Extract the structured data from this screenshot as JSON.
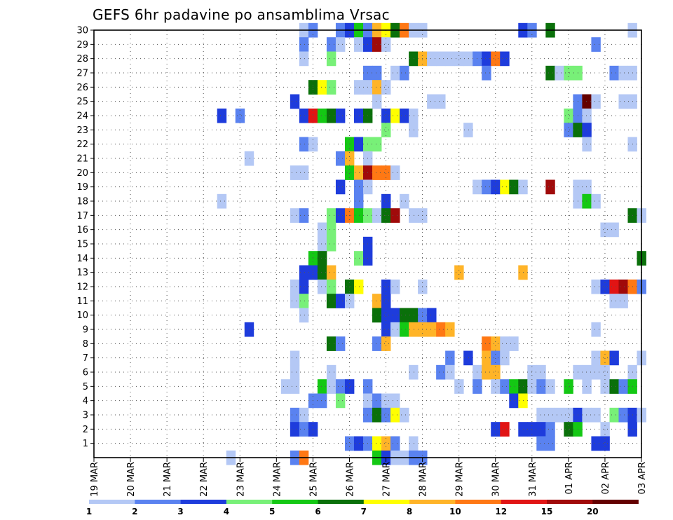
{
  "chart_data": {
    "type": "heatmap",
    "title": "GEFS 6hr padavine po ansamblima Vrsac",
    "x_tick_labels": [
      "19 MAR",
      "20 MAR",
      "21 MAR",
      "22 MAR",
      "23 MAR",
      "24 MAR",
      "25 MAR",
      "26 MAR",
      "27 MAR",
      "28 MAR",
      "29 MAR",
      "30 MAR",
      "31 MAR",
      "01 APR",
      "02 APR",
      "03 APR"
    ],
    "y_tick_labels": [
      "1",
      "2",
      "3",
      "4",
      "5",
      "6",
      "7",
      "8",
      "9",
      "10",
      "11",
      "12",
      "13",
      "14",
      "15",
      "16",
      "17",
      "18",
      "19",
      "20",
      "21",
      "22",
      "23",
      "24",
      "25",
      "26",
      "27",
      "28",
      "29",
      "30"
    ],
    "x_unit": "6-hour steps from 19 MAR 00Z",
    "x_range": [
      0,
      60
    ],
    "y_range": [
      0,
      30
    ],
    "grid": true,
    "legend_position": "bottom",
    "legend": {
      "labels": [
        "1",
        "2",
        "3",
        "4",
        "5",
        "6",
        "7",
        "8",
        "10",
        "12",
        "15",
        "20"
      ],
      "colors": [
        "#b4c8f5",
        "#5a82f0",
        "#1e3cdc",
        "#78f078",
        "#14c814",
        "#0a700a",
        "#ffff00",
        "#ffb428",
        "#ff7814",
        "#e11414",
        "#a00a0a",
        "#640000"
      ]
    },
    "cells": [
      [
        23,
        30,
        0
      ],
      [
        24,
        30,
        1
      ],
      [
        27,
        30,
        1
      ],
      [
        28,
        30,
        2
      ],
      [
        29,
        30,
        4
      ],
      [
        30,
        30,
        1
      ],
      [
        31,
        30,
        7
      ],
      [
        32,
        30,
        6
      ],
      [
        33,
        30,
        5
      ],
      [
        34,
        30,
        8
      ],
      [
        35,
        30,
        0
      ],
      [
        36,
        30,
        0
      ],
      [
        47,
        30,
        2
      ],
      [
        48,
        30,
        1
      ],
      [
        50,
        30,
        5
      ],
      [
        59,
        30,
        0
      ],
      [
        23,
        29,
        1
      ],
      [
        26,
        29,
        1
      ],
      [
        27,
        29,
        0
      ],
      [
        29,
        29,
        0
      ],
      [
        30,
        29,
        2
      ],
      [
        31,
        29,
        10
      ],
      [
        32,
        29,
        0
      ],
      [
        55,
        29,
        1
      ],
      [
        23,
        28,
        0
      ],
      [
        26,
        28,
        3
      ],
      [
        35,
        28,
        5
      ],
      [
        36,
        28,
        7
      ],
      [
        37,
        28,
        0
      ],
      [
        38,
        28,
        0
      ],
      [
        39,
        28,
        0
      ],
      [
        40,
        28,
        0
      ],
      [
        41,
        28,
        0
      ],
      [
        42,
        28,
        1
      ],
      [
        43,
        28,
        2
      ],
      [
        44,
        28,
        8
      ],
      [
        45,
        28,
        2
      ],
      [
        30,
        27,
        1
      ],
      [
        31,
        27,
        1
      ],
      [
        33,
        27,
        0
      ],
      [
        34,
        27,
        1
      ],
      [
        43,
        27,
        1
      ],
      [
        50,
        27,
        5
      ],
      [
        51,
        27,
        0
      ],
      [
        52,
        27,
        3
      ],
      [
        53,
        27,
        3
      ],
      [
        57,
        27,
        1
      ],
      [
        58,
        27,
        0
      ],
      [
        59,
        27,
        0
      ],
      [
        24,
        26,
        5
      ],
      [
        25,
        26,
        6
      ],
      [
        26,
        26,
        3
      ],
      [
        29,
        26,
        0
      ],
      [
        30,
        26,
        0
      ],
      [
        31,
        26,
        7
      ],
      [
        32,
        26,
        0
      ],
      [
        22,
        25,
        2
      ],
      [
        31,
        25,
        0
      ],
      [
        37,
        25,
        0
      ],
      [
        38,
        25,
        0
      ],
      [
        53,
        25,
        1
      ],
      [
        54,
        25,
        11
      ],
      [
        55,
        25,
        0
      ],
      [
        58,
        25,
        0
      ],
      [
        59,
        25,
        0
      ],
      [
        14,
        24,
        2
      ],
      [
        16,
        24,
        1
      ],
      [
        23,
        24,
        2
      ],
      [
        24,
        24,
        9
      ],
      [
        25,
        24,
        4
      ],
      [
        26,
        24,
        5
      ],
      [
        27,
        24,
        2
      ],
      [
        29,
        24,
        2
      ],
      [
        30,
        24,
        5
      ],
      [
        32,
        24,
        2
      ],
      [
        33,
        24,
        6
      ],
      [
        34,
        24,
        2
      ],
      [
        35,
        24,
        0
      ],
      [
        52,
        24,
        3
      ],
      [
        53,
        24,
        1
      ],
      [
        54,
        24,
        0
      ],
      [
        32,
        23,
        3
      ],
      [
        35,
        23,
        0
      ],
      [
        41,
        23,
        0
      ],
      [
        52,
        23,
        1
      ],
      [
        53,
        23,
        5
      ],
      [
        54,
        23,
        2
      ],
      [
        23,
        22,
        1
      ],
      [
        24,
        22,
        0
      ],
      [
        28,
        22,
        4
      ],
      [
        29,
        22,
        2
      ],
      [
        30,
        22,
        3
      ],
      [
        31,
        22,
        3
      ],
      [
        54,
        22,
        0
      ],
      [
        59,
        22,
        0
      ],
      [
        17,
        21,
        0
      ],
      [
        27,
        21,
        1
      ],
      [
        28,
        21,
        7
      ],
      [
        30,
        21,
        0
      ],
      [
        22,
        20,
        0
      ],
      [
        23,
        20,
        0
      ],
      [
        28,
        20,
        4
      ],
      [
        29,
        20,
        7
      ],
      [
        30,
        20,
        10
      ],
      [
        31,
        20,
        8
      ],
      [
        32,
        20,
        8
      ],
      [
        33,
        20,
        0
      ],
      [
        27,
        19,
        2
      ],
      [
        29,
        19,
        1
      ],
      [
        30,
        19,
        0
      ],
      [
        42,
        19,
        0
      ],
      [
        43,
        19,
        1
      ],
      [
        44,
        19,
        2
      ],
      [
        45,
        19,
        6
      ],
      [
        46,
        19,
        5
      ],
      [
        47,
        19,
        0
      ],
      [
        50,
        19,
        10
      ],
      [
        53,
        19,
        0
      ],
      [
        54,
        19,
        0
      ],
      [
        14,
        18,
        0
      ],
      [
        29,
        18,
        1
      ],
      [
        32,
        18,
        2
      ],
      [
        34,
        18,
        0
      ],
      [
        53,
        18,
        0
      ],
      [
        54,
        18,
        4
      ],
      [
        55,
        18,
        0
      ],
      [
        22,
        17,
        0
      ],
      [
        23,
        17,
        1
      ],
      [
        26,
        17,
        3
      ],
      [
        27,
        17,
        2
      ],
      [
        28,
        17,
        8
      ],
      [
        29,
        17,
        4
      ],
      [
        30,
        17,
        3
      ],
      [
        31,
        17,
        0
      ],
      [
        32,
        17,
        5
      ],
      [
        33,
        17,
        10
      ],
      [
        35,
        17,
        0
      ],
      [
        36,
        17,
        0
      ],
      [
        59,
        17,
        5
      ],
      [
        60,
        17,
        0
      ],
      [
        25,
        16,
        0
      ],
      [
        26,
        16,
        3
      ],
      [
        56,
        16,
        0
      ],
      [
        57,
        16,
        0
      ],
      [
        25,
        15,
        0
      ],
      [
        26,
        15,
        3
      ],
      [
        30,
        15,
        2
      ],
      [
        24,
        14,
        4
      ],
      [
        25,
        14,
        5
      ],
      [
        29,
        14,
        3
      ],
      [
        30,
        14,
        2
      ],
      [
        60,
        14,
        5
      ],
      [
        23,
        13,
        2
      ],
      [
        24,
        13,
        2
      ],
      [
        25,
        13,
        5
      ],
      [
        26,
        13,
        7
      ],
      [
        40,
        13,
        7
      ],
      [
        47,
        13,
        7
      ],
      [
        22,
        12,
        0
      ],
      [
        23,
        12,
        2
      ],
      [
        25,
        12,
        0
      ],
      [
        26,
        12,
        3
      ],
      [
        28,
        12,
        5
      ],
      [
        29,
        12,
        6
      ],
      [
        32,
        12,
        2
      ],
      [
        33,
        12,
        0
      ],
      [
        36,
        12,
        0
      ],
      [
        55,
        12,
        0
      ],
      [
        56,
        12,
        2
      ],
      [
        57,
        12,
        9
      ],
      [
        58,
        12,
        10
      ],
      [
        59,
        12,
        8
      ],
      [
        60,
        12,
        1
      ],
      [
        22,
        11,
        0
      ],
      [
        23,
        11,
        3
      ],
      [
        26,
        11,
        5
      ],
      [
        27,
        11,
        2
      ],
      [
        28,
        11,
        0
      ],
      [
        31,
        11,
        7
      ],
      [
        32,
        11,
        2
      ],
      [
        57,
        11,
        0
      ],
      [
        58,
        11,
        0
      ],
      [
        23,
        10,
        0
      ],
      [
        31,
        10,
        5
      ],
      [
        32,
        10,
        2
      ],
      [
        33,
        10,
        2
      ],
      [
        34,
        10,
        5
      ],
      [
        35,
        10,
        5
      ],
      [
        36,
        10,
        1
      ],
      [
        37,
        10,
        2
      ],
      [
        17,
        9,
        2
      ],
      [
        32,
        9,
        2
      ],
      [
        33,
        9,
        0
      ],
      [
        34,
        9,
        4
      ],
      [
        35,
        9,
        7
      ],
      [
        36,
        9,
        7
      ],
      [
        37,
        9,
        7
      ],
      [
        38,
        9,
        8
      ],
      [
        39,
        9,
        7
      ],
      [
        55,
        9,
        0
      ],
      [
        26,
        8,
        5
      ],
      [
        27,
        8,
        1
      ],
      [
        31,
        8,
        1
      ],
      [
        32,
        8,
        7
      ],
      [
        43,
        8,
        8
      ],
      [
        44,
        8,
        7
      ],
      [
        45,
        8,
        0
      ],
      [
        46,
        8,
        0
      ],
      [
        22,
        7,
        0
      ],
      [
        39,
        7,
        1
      ],
      [
        41,
        7,
        2
      ],
      [
        43,
        7,
        7
      ],
      [
        44,
        7,
        1
      ],
      [
        45,
        7,
        0
      ],
      [
        55,
        7,
        0
      ],
      [
        56,
        7,
        7
      ],
      [
        57,
        7,
        2
      ],
      [
        60,
        7,
        0
      ],
      [
        22,
        6,
        0
      ],
      [
        26,
        6,
        0
      ],
      [
        35,
        6,
        0
      ],
      [
        38,
        6,
        1
      ],
      [
        39,
        6,
        0
      ],
      [
        42,
        6,
        0
      ],
      [
        43,
        6,
        7
      ],
      [
        44,
        6,
        7
      ],
      [
        48,
        6,
        0
      ],
      [
        49,
        6,
        0
      ],
      [
        53,
        6,
        0
      ],
      [
        54,
        6,
        0
      ],
      [
        55,
        6,
        0
      ],
      [
        56,
        6,
        0
      ],
      [
        59,
        6,
        0
      ],
      [
        21,
        5,
        0
      ],
      [
        22,
        5,
        0
      ],
      [
        25,
        5,
        4
      ],
      [
        26,
        5,
        0
      ],
      [
        27,
        5,
        1
      ],
      [
        28,
        5,
        2
      ],
      [
        30,
        5,
        1
      ],
      [
        40,
        5,
        0
      ],
      [
        42,
        5,
        1
      ],
      [
        44,
        5,
        0
      ],
      [
        45,
        5,
        1
      ],
      [
        46,
        5,
        4
      ],
      [
        47,
        5,
        5
      ],
      [
        48,
        5,
        0
      ],
      [
        49,
        5,
        1
      ],
      [
        50,
        5,
        0
      ],
      [
        52,
        5,
        4
      ],
      [
        54,
        5,
        0
      ],
      [
        56,
        5,
        0
      ],
      [
        57,
        5,
        5
      ],
      [
        58,
        5,
        1
      ],
      [
        59,
        5,
        4
      ],
      [
        24,
        4,
        1
      ],
      [
        25,
        4,
        1
      ],
      [
        27,
        4,
        3
      ],
      [
        30,
        4,
        0
      ],
      [
        31,
        4,
        1
      ],
      [
        32,
        4,
        0
      ],
      [
        33,
        4,
        0
      ],
      [
        46,
        4,
        2
      ],
      [
        47,
        4,
        6
      ],
      [
        22,
        3,
        1
      ],
      [
        23,
        3,
        0
      ],
      [
        30,
        3,
        1
      ],
      [
        31,
        3,
        5
      ],
      [
        32,
        3,
        1
      ],
      [
        33,
        3,
        6
      ],
      [
        34,
        3,
        0
      ],
      [
        49,
        3,
        0
      ],
      [
        50,
        3,
        0
      ],
      [
        51,
        3,
        0
      ],
      [
        52,
        3,
        0
      ],
      [
        53,
        3,
        2
      ],
      [
        54,
        3,
        0
      ],
      [
        55,
        3,
        0
      ],
      [
        57,
        3,
        3
      ],
      [
        58,
        3,
        1
      ],
      [
        59,
        3,
        2
      ],
      [
        60,
        3,
        0
      ],
      [
        22,
        2,
        2
      ],
      [
        23,
        2,
        1
      ],
      [
        24,
        2,
        2
      ],
      [
        44,
        2,
        2
      ],
      [
        45,
        2,
        9
      ],
      [
        47,
        2,
        2
      ],
      [
        48,
        2,
        2
      ],
      [
        49,
        2,
        2
      ],
      [
        50,
        2,
        1
      ],
      [
        52,
        2,
        5
      ],
      [
        53,
        2,
        4
      ],
      [
        56,
        2,
        0
      ],
      [
        59,
        2,
        2
      ],
      [
        28,
        1,
        1
      ],
      [
        29,
        1,
        2
      ],
      [
        30,
        1,
        1
      ],
      [
        31,
        1,
        6
      ],
      [
        32,
        1,
        7
      ],
      [
        33,
        1,
        1
      ],
      [
        35,
        1,
        0
      ],
      [
        49,
        1,
        1
      ],
      [
        50,
        1,
        1
      ],
      [
        55,
        1,
        2
      ],
      [
        56,
        1,
        2
      ],
      [
        15,
        0,
        0
      ],
      [
        22,
        0,
        1
      ],
      [
        23,
        0,
        8
      ],
      [
        31,
        0,
        4
      ],
      [
        32,
        0,
        2
      ],
      [
        33,
        0,
        0
      ],
      [
        34,
        0,
        0
      ],
      [
        35,
        0,
        1
      ],
      [
        36,
        0,
        1
      ]
    ]
  }
}
